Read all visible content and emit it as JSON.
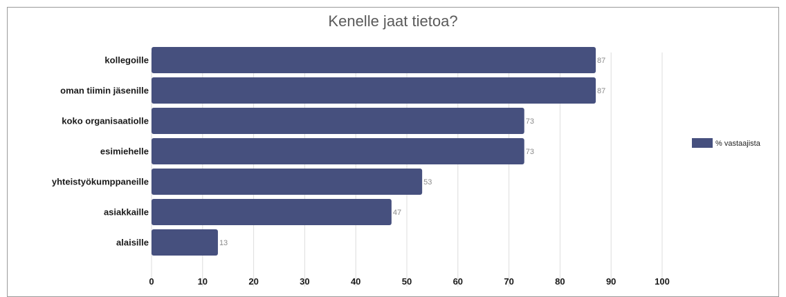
{
  "chart_data": {
    "type": "bar",
    "orientation": "horizontal",
    "title": "Kenelle jaat tietoa?",
    "xlabel": "",
    "ylabel": "",
    "categories": [
      "kollegoille",
      "oman tiimin jäsenille",
      "koko organisaatiolle",
      "esimiehelle",
      "yhteistyökumppaneille",
      "asiakkaille",
      "alaisille"
    ],
    "series": [
      {
        "name": "% vastaajista",
        "values": [
          87,
          87,
          73,
          73,
          53,
          47,
          13
        ],
        "color": "#46507e"
      }
    ],
    "xlim": [
      0,
      100
    ],
    "xticks": [
      0,
      10,
      20,
      30,
      40,
      50,
      60,
      70,
      80,
      90,
      100
    ],
    "grid": true,
    "legend_position": "right",
    "data_labels": true
  }
}
